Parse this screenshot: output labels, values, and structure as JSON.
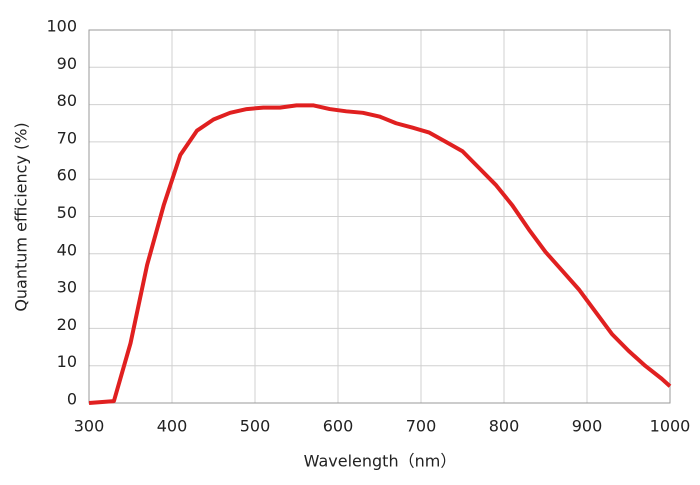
{
  "chart_data": {
    "type": "line",
    "xlabel": "Wavelength（nm）",
    "ylabel": "Quantum efficiency (%)",
    "x": [
      300,
      330,
      350,
      370,
      390,
      410,
      430,
      450,
      470,
      490,
      510,
      530,
      550,
      570,
      590,
      610,
      630,
      650,
      670,
      690,
      710,
      730,
      750,
      770,
      790,
      810,
      830,
      850,
      870,
      890,
      910,
      930,
      950,
      970,
      990,
      1000
    ],
    "series": [
      {
        "color": "#e02020",
        "values": [
          0,
          0.5,
          16,
          37,
          53,
          66.5,
          73,
          76,
          77.8,
          78.8,
          79.2,
          79.2,
          79.8,
          79.8,
          78.8,
          78.2,
          77.8,
          76.8,
          75,
          73.8,
          72.5,
          70,
          67.5,
          63,
          58.5,
          53,
          46.5,
          40.5,
          35.5,
          30.5,
          24.5,
          18.5,
          14,
          10,
          6.5,
          4.5
        ]
      }
    ],
    "xlim": [
      300,
      1000
    ],
    "xticks": [
      300,
      400,
      500,
      600,
      700,
      800,
      900,
      1000
    ],
    "ylim": [
      0,
      100
    ],
    "yticks": [
      0,
      10,
      20,
      30,
      40,
      50,
      60,
      70,
      80,
      90,
      100
    ],
    "grid": true
  }
}
